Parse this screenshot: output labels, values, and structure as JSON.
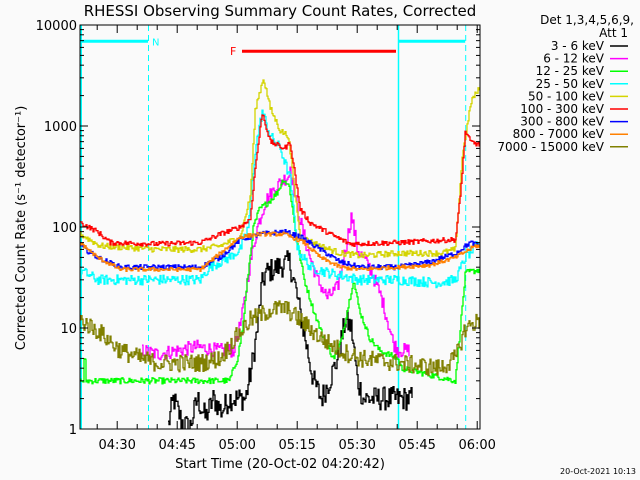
{
  "chart_data": {
    "type": "line",
    "title": "RHESSI Observing Summary Count Rates, Corrected",
    "xlabel": "Start Time (20-Oct-02 04:20:42)",
    "ylabel": "Corrected Count Rate (s⁻¹ detector⁻¹)",
    "x_units": "minutes after 04:00 UT",
    "xlim": [
      20.7,
      120.7
    ],
    "ylim": [
      1,
      10000
    ],
    "yscale": "log",
    "x_ticks": [
      {
        "value": 30,
        "label": "04:30"
      },
      {
        "value": 45,
        "label": "04:45"
      },
      {
        "value": 60,
        "label": "05:00"
      },
      {
        "value": 75,
        "label": "05:15"
      },
      {
        "value": 90,
        "label": "05:30"
      },
      {
        "value": 105,
        "label": "05:45"
      },
      {
        "value": 120,
        "label": "06:00"
      }
    ],
    "y_ticks": [
      {
        "value": 1,
        "label": "1"
      },
      {
        "value": 10,
        "label": "10"
      },
      {
        "value": 100,
        "label": "100"
      },
      {
        "value": 1000,
        "label": "1000"
      },
      {
        "value": 10000,
        "label": "10000"
      }
    ],
    "legend": {
      "placement": "right",
      "header": [
        "Det 1,3,4,5,6,9,",
        "Att 1"
      ]
    },
    "annotations": {
      "night": {
        "label": "N",
        "color": "#00ffff",
        "intervals": [
          [
            20.7,
            37.7
          ],
          [
            100.2,
            117.0
          ]
        ],
        "level": 6900
      },
      "flare": {
        "label": "F",
        "color": "#ff0000",
        "interval": [
          61.2,
          99.7
        ],
        "level": 5500
      }
    },
    "series": [
      {
        "name": "3 - 6 keV",
        "color": "#000000",
        "noise": 0.12,
        "points": [
          [
            42.5,
            1
          ],
          [
            44,
            2
          ],
          [
            46,
            1.2
          ],
          [
            48,
            1
          ],
          [
            50,
            2
          ],
          [
            52,
            1.3
          ],
          [
            54,
            2
          ],
          [
            56,
            1.5
          ],
          [
            58,
            2
          ],
          [
            60,
            2
          ],
          [
            62,
            2
          ],
          [
            63.5,
            4
          ],
          [
            65,
            10
          ],
          [
            66,
            25
          ],
          [
            67,
            35
          ],
          [
            70,
            40
          ],
          [
            73,
            45
          ],
          [
            74.5,
            25
          ],
          [
            76,
            12
          ],
          [
            77.5,
            6
          ],
          [
            79,
            3
          ],
          [
            81,
            2
          ],
          [
            83,
            3
          ],
          [
            85,
            5
          ],
          [
            87,
            12
          ],
          [
            88.5,
            10
          ],
          [
            90,
            3
          ],
          [
            91.5,
            2
          ],
          [
            95,
            2
          ],
          [
            100,
            2
          ],
          [
            103.7,
            2
          ]
        ]
      },
      {
        "name": "6 - 12 keV",
        "color": "#ff00ff",
        "noise": 0.07,
        "points": [
          [
            36,
            6
          ],
          [
            40,
            5.5
          ],
          [
            45,
            6
          ],
          [
            50,
            6.5
          ],
          [
            55,
            6
          ],
          [
            59,
            6
          ],
          [
            61,
            12
          ],
          [
            63,
            40
          ],
          [
            65,
            100
          ],
          [
            67,
            180
          ],
          [
            70,
            260
          ],
          [
            73,
            330
          ],
          [
            73.2,
            400
          ],
          [
            75,
            150
          ],
          [
            77.5,
            60
          ],
          [
            80,
            30
          ],
          [
            82.5,
            20
          ],
          [
            85,
            25
          ],
          [
            87,
            60
          ],
          [
            88.5,
            130
          ],
          [
            90,
            60
          ],
          [
            93,
            40
          ],
          [
            96,
            20
          ],
          [
            99,
            7
          ],
          [
            100.2,
            6
          ],
          [
            103,
            6
          ]
        ]
      },
      {
        "name": "12 - 25 keV",
        "color": "#00ff00",
        "noise": 0.03,
        "points": [
          [
            20.7,
            3
          ],
          [
            21.5,
            3
          ],
          [
            21.8,
            6
          ],
          [
            22.2,
            3
          ],
          [
            35,
            3
          ],
          [
            55,
            3
          ],
          [
            58,
            3
          ],
          [
            60,
            5
          ],
          [
            61.3,
            10
          ],
          [
            62.5,
            30
          ],
          [
            64,
            100
          ],
          [
            65.5,
            150
          ],
          [
            68,
            180
          ],
          [
            70,
            220
          ],
          [
            71.5,
            300
          ],
          [
            73,
            250
          ],
          [
            74.7,
            80
          ],
          [
            76.7,
            30
          ],
          [
            79,
            15
          ],
          [
            81.5,
            8
          ],
          [
            84,
            5
          ],
          [
            85.7,
            7
          ],
          [
            87.5,
            15
          ],
          [
            89,
            30
          ],
          [
            90.5,
            15
          ],
          [
            93,
            8
          ],
          [
            95.5,
            6
          ],
          [
            100,
            5
          ],
          [
            101,
            4
          ],
          [
            114.5,
            3
          ],
          [
            115.7,
            10
          ],
          [
            117,
            35
          ],
          [
            120.7,
            38
          ]
        ]
      },
      {
        "name": "25 - 50 keV",
        "color": "#00ffff",
        "noise": 0.05,
        "points": [
          [
            20.7,
            38
          ],
          [
            22,
            35
          ],
          [
            25,
            30
          ],
          [
            30,
            30
          ],
          [
            40,
            30
          ],
          [
            50.7,
            30
          ],
          [
            53,
            40
          ],
          [
            58,
            50
          ],
          [
            60.7,
            60
          ],
          [
            62.7,
            100
          ],
          [
            64.5,
            600
          ],
          [
            66.2,
            1400
          ],
          [
            68.2,
            800
          ],
          [
            70.7,
            600
          ],
          [
            73.2,
            300
          ],
          [
            75,
            60
          ],
          [
            78.2,
            40
          ],
          [
            83,
            35
          ],
          [
            90.7,
            30
          ],
          [
            100.2,
            30
          ],
          [
            110,
            28
          ],
          [
            114.5,
            30
          ],
          [
            117,
            50
          ],
          [
            120.7,
            70
          ]
        ]
      },
      {
        "name": "50 - 100 keV",
        "color": "#d4d400",
        "noise": 0.03,
        "points": [
          [
            20.7,
            85
          ],
          [
            25.7,
            65
          ],
          [
            40,
            60
          ],
          [
            50.7,
            60
          ],
          [
            55.7,
            65
          ],
          [
            60.7,
            80
          ],
          [
            63.2,
            200
          ],
          [
            64.5,
            1500
          ],
          [
            66.5,
            3000
          ],
          [
            68.2,
            1500
          ],
          [
            70.7,
            900
          ],
          [
            72.7,
            800
          ],
          [
            74.5,
            200
          ],
          [
            75.7,
            80
          ],
          [
            80.7,
            65
          ],
          [
            85.7,
            55
          ],
          [
            90.7,
            52
          ],
          [
            100.2,
            55
          ],
          [
            110.7,
            55
          ],
          [
            114.5,
            60
          ],
          [
            116.2,
            500
          ],
          [
            118.5,
            1800
          ],
          [
            120.7,
            2400
          ]
        ]
      },
      {
        "name": "100 - 300 keV",
        "color": "#ff0000",
        "noise": 0.025,
        "points": [
          [
            20.7,
            110
          ],
          [
            25,
            90
          ],
          [
            28.2,
            70
          ],
          [
            40,
            68
          ],
          [
            50.7,
            70
          ],
          [
            55.7,
            85
          ],
          [
            60.7,
            100
          ],
          [
            63.2,
            120
          ],
          [
            64.5,
            400
          ],
          [
            66.2,
            1350
          ],
          [
            68.2,
            700
          ],
          [
            71.7,
            600
          ],
          [
            73.2,
            680
          ],
          [
            75.7,
            150
          ],
          [
            78.2,
            110
          ],
          [
            84.5,
            80
          ],
          [
            88.2,
            68
          ],
          [
            100.2,
            70
          ],
          [
            114.5,
            75
          ],
          [
            115.7,
            200
          ],
          [
            117,
            900
          ],
          [
            118.2,
            700
          ],
          [
            120.7,
            650
          ]
        ]
      },
      {
        "name": "300 - 800 keV",
        "color": "#0000ff",
        "noise": 0.025,
        "points": [
          [
            20.7,
            65
          ],
          [
            25,
            50
          ],
          [
            30.7,
            40
          ],
          [
            40,
            40
          ],
          [
            50.7,
            40
          ],
          [
            55.7,
            50
          ],
          [
            60.7,
            75
          ],
          [
            65.7,
            85
          ],
          [
            71.7,
            90
          ],
          [
            75.7,
            80
          ],
          [
            80.7,
            60
          ],
          [
            85.7,
            45
          ],
          [
            90.7,
            40
          ],
          [
            100.2,
            40
          ],
          [
            108.2,
            45
          ],
          [
            114.5,
            55
          ],
          [
            118.2,
            70
          ],
          [
            120.7,
            65
          ]
        ]
      },
      {
        "name": "800 - 7000 keV",
        "color": "#ff8000",
        "noise": 0.02,
        "points": [
          [
            20.7,
            70
          ],
          [
            25,
            50
          ],
          [
            30.7,
            38
          ],
          [
            40,
            38
          ],
          [
            50.7,
            38
          ],
          [
            55.7,
            55
          ],
          [
            60.7,
            80
          ],
          [
            65.7,
            85
          ],
          [
            71.7,
            85
          ],
          [
            76.7,
            70
          ],
          [
            80.7,
            50
          ],
          [
            85.7,
            40
          ],
          [
            90.7,
            38
          ],
          [
            100.2,
            40
          ],
          [
            108.2,
            42
          ],
          [
            114.5,
            50
          ],
          [
            119.5,
            65
          ],
          [
            120.7,
            65
          ]
        ]
      },
      {
        "name": "7000 - 15000 keV",
        "color": "#808000",
        "noise": 0.09,
        "points": [
          [
            20.7,
            12
          ],
          [
            25.7,
            9
          ],
          [
            30.7,
            6
          ],
          [
            35.7,
            5
          ],
          [
            40,
            4.5
          ],
          [
            50.7,
            4.5
          ],
          [
            55.7,
            5
          ],
          [
            59.5,
            8
          ],
          [
            63.2,
            12
          ],
          [
            68.2,
            15
          ],
          [
            71.7,
            16
          ],
          [
            75.7,
            12
          ],
          [
            80.7,
            8
          ],
          [
            85.7,
            6
          ],
          [
            90.7,
            5
          ],
          [
            100.2,
            4.5
          ],
          [
            110.7,
            4
          ],
          [
            114.5,
            5
          ],
          [
            117,
            10
          ],
          [
            120.7,
            12
          ]
        ]
      }
    ]
  },
  "footer": {
    "timestamp": "20-Oct-2021 10:13"
  }
}
